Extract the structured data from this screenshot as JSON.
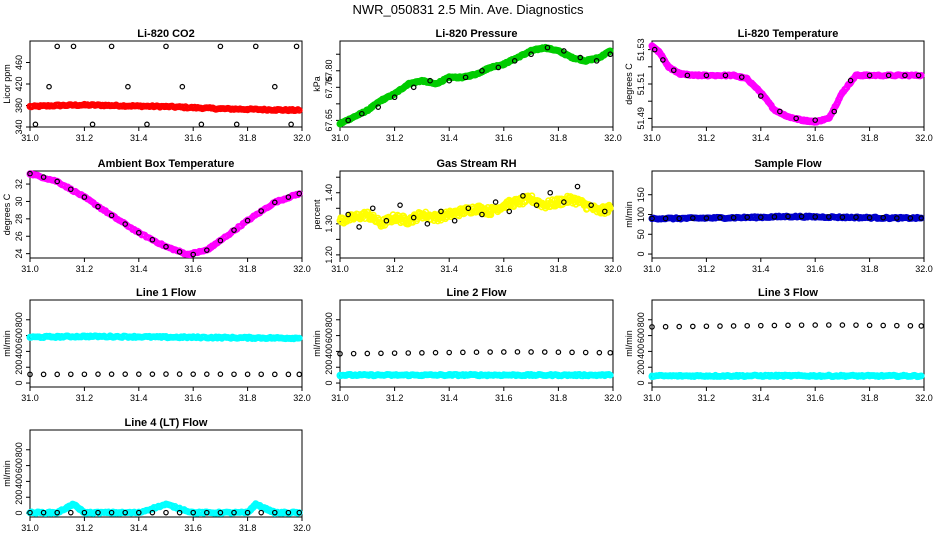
{
  "page_title": "NWR_050831  2.5 Min. Ave. Diagnostics",
  "chart_data": [
    {
      "id": "li820-co2",
      "type": "scatter",
      "title": "Li-820 CO2",
      "ylabel": "Licor ppm",
      "xlim": [
        31.0,
        32.0
      ],
      "ylim": [
        340,
        500
      ],
      "yticks": [
        340,
        380,
        420,
        460
      ],
      "series": [
        {
          "name": "co2",
          "color": "#ff0000",
          "marker": "filled",
          "x": [
            31.0,
            31.1,
            31.2,
            31.3,
            31.4,
            31.5,
            31.6,
            31.7,
            31.8,
            31.9,
            31.99
          ],
          "y": [
            378,
            380,
            381,
            380,
            379,
            378,
            376,
            374,
            373,
            372,
            371
          ]
        },
        {
          "name": "co2-ref",
          "color": "#000000",
          "marker": "open",
          "x": [
            31.02,
            31.07,
            31.1,
            31.16,
            31.23,
            31.3,
            31.36,
            31.43,
            31.5,
            31.56,
            31.63,
            31.7,
            31.76,
            31.83,
            31.9,
            31.96,
            31.98
          ],
          "y": [
            345,
            415,
            490,
            490,
            345,
            490,
            415,
            345,
            490,
            415,
            345,
            490,
            345,
            490,
            415,
            345,
            490
          ]
        }
      ]
    },
    {
      "id": "li820-pressure",
      "type": "scatter",
      "title": "Li-820 Pressure",
      "ylabel": "kPa",
      "xlim": [
        31.0,
        32.0
      ],
      "ylim": [
        67.63,
        67.89
      ],
      "yticks": [
        67.65,
        67.7,
        67.75,
        67.8,
        67.85
      ],
      "ytick_labels": [
        "67.65",
        "",
        "67.75",
        "67.80",
        ""
      ],
      "series": [
        {
          "name": "pressure",
          "color": "#00cc00",
          "marker": "filled",
          "x": [
            31.0,
            31.05,
            31.1,
            31.15,
            31.2,
            31.25,
            31.3,
            31.35,
            31.4,
            31.45,
            31.5,
            31.55,
            31.6,
            31.65,
            31.7,
            31.75,
            31.8,
            31.85,
            31.9,
            31.95,
            31.99
          ],
          "y": [
            67.64,
            67.66,
            67.68,
            67.71,
            67.73,
            67.76,
            67.77,
            67.76,
            67.78,
            67.78,
            67.79,
            67.81,
            67.82,
            67.84,
            67.86,
            67.87,
            67.86,
            67.84,
            67.83,
            67.84,
            67.86
          ]
        },
        {
          "name": "pressure-ref",
          "color": "#000000",
          "marker": "open",
          "x": [
            31.03,
            31.08,
            31.14,
            31.2,
            31.27,
            31.33,
            31.4,
            31.46,
            31.52,
            31.58,
            31.64,
            31.7,
            31.76,
            31.82,
            31.88,
            31.94,
            31.99
          ],
          "y": [
            67.65,
            67.67,
            67.69,
            67.72,
            67.75,
            67.77,
            67.77,
            67.78,
            67.8,
            67.81,
            67.83,
            67.85,
            67.87,
            67.86,
            67.84,
            67.83,
            67.85
          ]
        }
      ]
    },
    {
      "id": "li820-temperature",
      "type": "scatter",
      "title": "Li-820 Temperature",
      "ylabel": "degrees C",
      "xlim": [
        31.0,
        32.0
      ],
      "ylim": [
        51.485,
        51.535
      ],
      "yticks": [
        51.49,
        51.5,
        51.51,
        51.52,
        51.53
      ],
      "ytick_labels": [
        "51.49",
        "",
        "51.51",
        "",
        "51.53"
      ],
      "series": [
        {
          "name": "temp",
          "color": "#ff00ff",
          "marker": "filled",
          "x": [
            31.0,
            31.03,
            31.06,
            31.1,
            31.15,
            31.2,
            31.3,
            31.35,
            31.4,
            31.45,
            31.5,
            31.55,
            31.6,
            31.65,
            31.7,
            31.75,
            31.8,
            31.9,
            31.99
          ],
          "y": [
            51.532,
            51.528,
            51.52,
            51.516,
            51.515,
            51.515,
            51.515,
            51.513,
            51.505,
            51.495,
            51.491,
            51.489,
            51.488,
            51.49,
            51.505,
            51.515,
            51.515,
            51.515,
            51.515
          ]
        },
        {
          "name": "temp-ref",
          "color": "#000000",
          "marker": "open",
          "x": [
            31.01,
            31.04,
            31.08,
            31.13,
            31.2,
            31.27,
            31.33,
            31.4,
            31.47,
            31.53,
            31.6,
            31.67,
            31.73,
            31.8,
            31.87,
            31.93,
            31.98
          ],
          "y": [
            51.53,
            51.524,
            51.518,
            51.515,
            51.515,
            51.515,
            51.514,
            51.503,
            51.494,
            51.49,
            51.489,
            51.494,
            51.512,
            51.515,
            51.515,
            51.515,
            51.515
          ]
        }
      ]
    },
    {
      "id": "ambient-box-temperature",
      "type": "scatter",
      "title": "Ambient Box Temperature",
      "ylabel": "degrees C",
      "xlim": [
        31.0,
        32.0
      ],
      "ylim": [
        23.5,
        33.5
      ],
      "yticks": [
        24,
        26,
        28,
        30,
        32
      ],
      "series": [
        {
          "name": "box-temp",
          "color": "#ff00ff",
          "marker": "filled",
          "x": [
            31.0,
            31.1,
            31.2,
            31.3,
            31.4,
            31.5,
            31.58,
            31.65,
            31.7,
            31.8,
            31.9,
            31.99
          ],
          "y": [
            33.2,
            32.3,
            30.5,
            28.4,
            26.4,
            24.8,
            23.9,
            24.4,
            25.5,
            27.8,
            29.9,
            30.9
          ]
        },
        {
          "name": "box-temp-ref",
          "color": "#000000",
          "marker": "open",
          "x": [
            31.0,
            31.05,
            31.1,
            31.15,
            31.2,
            31.25,
            31.3,
            31.35,
            31.4,
            31.45,
            31.5,
            31.55,
            31.6,
            31.65,
            31.7,
            31.75,
            31.8,
            31.85,
            31.9,
            31.95,
            31.99
          ],
          "y": [
            33.2,
            32.8,
            32.3,
            31.4,
            30.5,
            29.4,
            28.4,
            27.4,
            26.4,
            25.6,
            24.8,
            24.2,
            23.9,
            24.4,
            25.5,
            26.7,
            27.8,
            28.9,
            29.9,
            30.5,
            30.9
          ]
        }
      ]
    },
    {
      "id": "gas-stream-rh",
      "type": "scatter",
      "title": "Gas Stream RH",
      "ylabel": "percent",
      "xlim": [
        31.0,
        32.0
      ],
      "ylim": [
        1.19,
        1.47
      ],
      "yticks": [
        1.2,
        1.25,
        1.3,
        1.35,
        1.4,
        1.45
      ],
      "ytick_labels": [
        "1.20",
        "",
        "1.30",
        "",
        "1.40",
        ""
      ],
      "series": [
        {
          "name": "rh",
          "color": "#ffff00",
          "marker": "filled",
          "x": [
            31.0,
            31.05,
            31.1,
            31.15,
            31.2,
            31.25,
            31.3,
            31.35,
            31.4,
            31.45,
            31.5,
            31.55,
            31.6,
            31.65,
            31.7,
            31.75,
            31.8,
            31.85,
            31.9,
            31.95,
            31.99
          ],
          "y": [
            1.31,
            1.32,
            1.33,
            1.3,
            1.32,
            1.31,
            1.33,
            1.32,
            1.33,
            1.34,
            1.35,
            1.34,
            1.36,
            1.37,
            1.38,
            1.36,
            1.37,
            1.38,
            1.36,
            1.34,
            1.35
          ]
        },
        {
          "name": "rh-ref",
          "color": "#000000",
          "marker": "open",
          "x": [
            31.03,
            31.07,
            31.12,
            31.17,
            31.22,
            31.27,
            31.32,
            31.37,
            31.42,
            31.47,
            31.52,
            31.57,
            31.62,
            31.67,
            31.72,
            31.77,
            31.82,
            31.87,
            31.92,
            31.97
          ],
          "y": [
            1.33,
            1.29,
            1.35,
            1.31,
            1.36,
            1.32,
            1.3,
            1.34,
            1.31,
            1.35,
            1.33,
            1.37,
            1.34,
            1.39,
            1.36,
            1.4,
            1.37,
            1.42,
            1.36,
            1.34
          ]
        }
      ]
    },
    {
      "id": "sample-flow",
      "type": "scatter",
      "title": "Sample Flow",
      "ylabel": "ml/min",
      "xlim": [
        31.0,
        32.0
      ],
      "ylim": [
        -10,
        210
      ],
      "yticks": [
        0,
        50,
        100,
        150
      ],
      "series": [
        {
          "name": "sample",
          "color": "#0000cc",
          "marker": "filled",
          "x": [
            31.0,
            31.1,
            31.2,
            31.3,
            31.4,
            31.5,
            31.6,
            31.7,
            31.8,
            31.9,
            31.99
          ],
          "y": [
            90,
            90,
            91,
            92,
            93,
            95,
            94,
            93,
            92,
            91,
            91
          ]
        },
        {
          "name": "sample-ref",
          "color": "#000000",
          "marker": "open",
          "x": [
            31.0,
            31.05,
            31.1,
            31.15,
            31.2,
            31.25,
            31.3,
            31.35,
            31.4,
            31.45,
            31.5,
            31.55,
            31.6,
            31.65,
            31.7,
            31.75,
            31.8,
            31.85,
            31.9,
            31.95,
            31.99
          ],
          "y": [
            90,
            90,
            90,
            91,
            91,
            92,
            92,
            93,
            93,
            94,
            95,
            95,
            94,
            94,
            93,
            93,
            92,
            92,
            91,
            91,
            91
          ]
        }
      ]
    },
    {
      "id": "line-1-flow",
      "type": "scatter",
      "title": "Line 1 Flow",
      "ylabel": "ml/min",
      "xlim": [
        31.0,
        32.0
      ],
      "ylim": [
        -50,
        1050
      ],
      "yticks": [
        0,
        200,
        400,
        600,
        800
      ],
      "series": [
        {
          "name": "line1",
          "color": "#00ffff",
          "marker": "filled",
          "x": [
            31.0,
            31.1,
            31.2,
            31.3,
            31.4,
            31.5,
            31.6,
            31.7,
            31.8,
            31.9,
            31.99
          ],
          "y": [
            580,
            585,
            590,
            588,
            585,
            580,
            578,
            575,
            572,
            570,
            568
          ]
        },
        {
          "name": "line1-ref",
          "color": "#000000",
          "marker": "open",
          "x": [
            31.0,
            31.05,
            31.1,
            31.15,
            31.2,
            31.25,
            31.3,
            31.35,
            31.4,
            31.45,
            31.5,
            31.55,
            31.6,
            31.65,
            31.7,
            31.75,
            31.8,
            31.85,
            31.9,
            31.95,
            31.99
          ],
          "y": [
            110,
            110,
            110,
            111,
            111,
            112,
            112,
            112,
            112,
            112,
            113,
            113,
            112,
            112,
            112,
            111,
            111,
            111,
            110,
            110,
            110
          ]
        }
      ]
    },
    {
      "id": "line-2-flow",
      "type": "scatter",
      "title": "Line 2 Flow",
      "ylabel": "ml/min",
      "xlim": [
        31.0,
        32.0
      ],
      "ylim": [
        -50,
        1050
      ],
      "yticks": [
        0,
        200,
        400,
        600,
        800
      ],
      "series": [
        {
          "name": "line2",
          "color": "#00ffff",
          "marker": "filled",
          "x": [
            31.0,
            31.1,
            31.2,
            31.3,
            31.4,
            31.5,
            31.6,
            31.7,
            31.8,
            31.9,
            31.99
          ],
          "y": [
            100,
            100,
            100,
            100,
            101,
            101,
            101,
            100,
            100,
            100,
            100
          ]
        },
        {
          "name": "line2-ref",
          "color": "#000000",
          "marker": "open",
          "x": [
            31.0,
            31.05,
            31.1,
            31.15,
            31.2,
            31.25,
            31.3,
            31.35,
            31.4,
            31.45,
            31.5,
            31.55,
            31.6,
            31.65,
            31.7,
            31.75,
            31.8,
            31.85,
            31.9,
            31.95,
            31.99
          ],
          "y": [
            370,
            372,
            374,
            376,
            378,
            380,
            382,
            384,
            386,
            388,
            390,
            392,
            393,
            394,
            393,
            392,
            390,
            388,
            386,
            384,
            383
          ]
        }
      ]
    },
    {
      "id": "line-3-flow",
      "type": "scatter",
      "title": "Line 3 Flow",
      "ylabel": "ml/min",
      "xlim": [
        31.0,
        32.0
      ],
      "ylim": [
        -50,
        1050
      ],
      "yticks": [
        0,
        200,
        400,
        600,
        800
      ],
      "series": [
        {
          "name": "line3",
          "color": "#00ffff",
          "marker": "filled",
          "x": [
            31.0,
            31.1,
            31.2,
            31.3,
            31.4,
            31.5,
            31.6,
            31.7,
            31.8,
            31.9,
            31.99
          ],
          "y": [
            90,
            90,
            91,
            91,
            92,
            92,
            91,
            91,
            90,
            90,
            90
          ]
        },
        {
          "name": "line3-ref",
          "color": "#000000",
          "marker": "open",
          "x": [
            31.0,
            31.05,
            31.1,
            31.15,
            31.2,
            31.25,
            31.3,
            31.35,
            31.4,
            31.45,
            31.5,
            31.55,
            31.6,
            31.65,
            31.7,
            31.75,
            31.8,
            31.85,
            31.9,
            31.95,
            31.99
          ],
          "y": [
            710,
            712,
            714,
            716,
            718,
            720,
            722,
            724,
            726,
            728,
            730,
            732,
            733,
            734,
            733,
            732,
            730,
            728,
            726,
            724,
            722
          ]
        }
      ]
    },
    {
      "id": "line-4-lt-flow",
      "type": "scatter",
      "title": "Line 4 (LT) Flow",
      "ylabel": "ml/min",
      "xlim": [
        31.0,
        32.0
      ],
      "ylim": [
        -50,
        1050
      ],
      "yticks": [
        0,
        200,
        400,
        600,
        800
      ],
      "series": [
        {
          "name": "line4",
          "color": "#00ffff",
          "marker": "filled",
          "x": [
            31.0,
            31.1,
            31.16,
            31.2,
            31.3,
            31.4,
            31.5,
            31.6,
            31.7,
            31.8,
            31.83,
            31.9,
            31.99
          ],
          "y": [
            5,
            5,
            110,
            5,
            5,
            5,
            110,
            5,
            5,
            5,
            110,
            5,
            5
          ]
        },
        {
          "name": "line4-ref",
          "color": "#000000",
          "marker": "open",
          "x": [
            31.0,
            31.05,
            31.1,
            31.15,
            31.2,
            31.25,
            31.3,
            31.35,
            31.4,
            31.45,
            31.5,
            31.55,
            31.6,
            31.65,
            31.7,
            31.75,
            31.8,
            31.85,
            31.9,
            31.95,
            31.99
          ],
          "y": [
            5,
            5,
            5,
            5,
            5,
            5,
            5,
            5,
            5,
            5,
            5,
            5,
            5,
            5,
            5,
            5,
            5,
            5,
            5,
            5,
            5
          ]
        }
      ]
    }
  ],
  "xticks": [
    31.0,
    31.2,
    31.4,
    31.6,
    31.8,
    32.0
  ],
  "xtick_labels": [
    "31.0",
    "31.2",
    "31.4",
    "31.6",
    "31.8",
    "32.0"
  ]
}
